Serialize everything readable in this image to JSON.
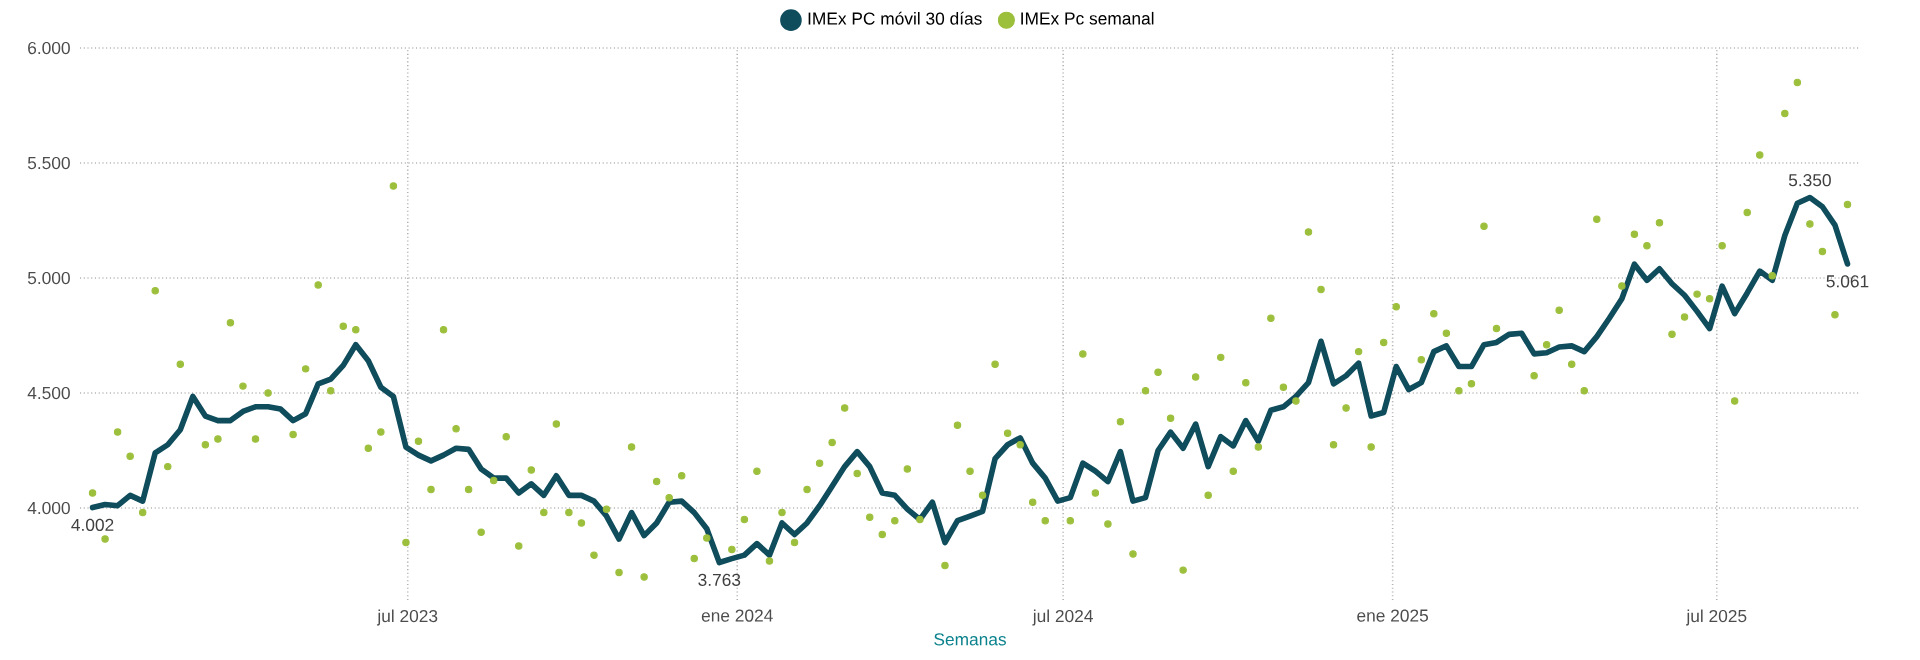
{
  "chart_data": {
    "type": "line",
    "xlabel": "Semanas",
    "legend": "top",
    "grid": true,
    "x": [
      "2023-01-06",
      "2023-01-13",
      "2023-01-20",
      "2023-01-27",
      "2023-02-03",
      "2023-02-10",
      "2023-02-17",
      "2023-02-24",
      "2023-03-03",
      "2023-03-10",
      "2023-03-17",
      "2023-03-24",
      "2023-03-31",
      "2023-04-07",
      "2023-04-14",
      "2023-04-21",
      "2023-04-28",
      "2023-05-05",
      "2023-05-12",
      "2023-05-19",
      "2023-05-26",
      "2023-06-02",
      "2023-06-09",
      "2023-06-16",
      "2023-06-23",
      "2023-06-30",
      "2023-07-07",
      "2023-07-14",
      "2023-07-21",
      "2023-07-28",
      "2023-08-04",
      "2023-08-11",
      "2023-08-18",
      "2023-08-25",
      "2023-09-01",
      "2023-09-08",
      "2023-09-15",
      "2023-09-22",
      "2023-09-29",
      "2023-10-06",
      "2023-10-13",
      "2023-10-20",
      "2023-10-27",
      "2023-11-03",
      "2023-11-10",
      "2023-11-17",
      "2023-11-24",
      "2023-12-01",
      "2023-12-08",
      "2023-12-15",
      "2023-12-22",
      "2023-12-29",
      "2024-01-05",
      "2024-01-12",
      "2024-01-19",
      "2024-01-26",
      "2024-02-02",
      "2024-02-09",
      "2024-02-16",
      "2024-02-23",
      "2024-03-01",
      "2024-03-08",
      "2024-03-15",
      "2024-03-22",
      "2024-03-29",
      "2024-04-05",
      "2024-04-12",
      "2024-04-19",
      "2024-04-26",
      "2024-05-03",
      "2024-05-10",
      "2024-05-17",
      "2024-05-24",
      "2024-05-31",
      "2024-06-07",
      "2024-06-14",
      "2024-06-21",
      "2024-06-28",
      "2024-07-05",
      "2024-07-12",
      "2024-07-19",
      "2024-07-26",
      "2024-08-02",
      "2024-08-09",
      "2024-08-16",
      "2024-08-23",
      "2024-08-30",
      "2024-09-06",
      "2024-09-13",
      "2024-09-20",
      "2024-09-27",
      "2024-10-04",
      "2024-10-11",
      "2024-10-18",
      "2024-10-25",
      "2024-11-01",
      "2024-11-08",
      "2024-11-15",
      "2024-11-22",
      "2024-11-29",
      "2024-12-06",
      "2024-12-13",
      "2024-12-20",
      "2024-12-27",
      "2025-01-03",
      "2025-01-10",
      "2025-01-17",
      "2025-01-24",
      "2025-01-31",
      "2025-02-07",
      "2025-02-14",
      "2025-02-21",
      "2025-02-28",
      "2025-03-07",
      "2025-03-14",
      "2025-03-21",
      "2025-03-28",
      "2025-04-04",
      "2025-04-11",
      "2025-04-18",
      "2025-04-25",
      "2025-05-02",
      "2025-05-09",
      "2025-05-16",
      "2025-05-23",
      "2025-05-30",
      "2025-06-06",
      "2025-06-13",
      "2025-06-20",
      "2025-06-27",
      "2025-07-04",
      "2025-07-11",
      "2025-07-18",
      "2025-07-25",
      "2025-08-01",
      "2025-08-08",
      "2025-08-15",
      "2025-08-22",
      "2025-08-29",
      "2025-09-05",
      "2025-09-12"
    ],
    "xlim": [
      "2022-12-30",
      "2025-09-19"
    ],
    "xticks": [
      {
        "value": "2023-07-01",
        "label": "jul 2023"
      },
      {
        "value": "2024-01-01",
        "label": "ene 2024"
      },
      {
        "value": "2024-07-01",
        "label": "jul 2024"
      },
      {
        "value": "2025-01-01",
        "label": "ene 2025"
      },
      {
        "value": "2025-07-01",
        "label": "jul 2025"
      }
    ],
    "ylim": [
      3600,
      6000
    ],
    "yticks": [
      {
        "value": 4000,
        "label": "4.000"
      },
      {
        "value": 4500,
        "label": "4.500"
      },
      {
        "value": 5000,
        "label": "5.000"
      },
      {
        "value": 5500,
        "label": "5.500"
      },
      {
        "value": 6000,
        "label": "6.000"
      }
    ],
    "series": [
      {
        "name": "IMEx PC móvil 30 días",
        "color": "#0f4c5c",
        "values": [
          4002,
          4015,
          4010,
          4055,
          4030,
          4240,
          4275,
          4340,
          4485,
          4400,
          4380,
          4380,
          4420,
          4440,
          4440,
          4430,
          4380,
          4410,
          4540,
          4560,
          4620,
          4710,
          4640,
          4525,
          4485,
          4265,
          4230,
          4205,
          4230,
          4260,
          4255,
          4170,
          4130,
          4130,
          4065,
          4105,
          4055,
          4140,
          4055,
          4055,
          4030,
          3965,
          3865,
          3980,
          3880,
          3935,
          4025,
          4030,
          3980,
          3910,
          3763,
          3780,
          3795,
          3845,
          3795,
          3935,
          3885,
          3935,
          4010,
          4095,
          4180,
          4245,
          4180,
          4065,
          4055,
          3995,
          3950,
          4025,
          3850,
          3945,
          3965,
          3985,
          4215,
          4275,
          4305,
          4195,
          4130,
          4030,
          4045,
          4195,
          4160,
          4115,
          4245,
          4030,
          4045,
          4250,
          4330,
          4260,
          4365,
          4180,
          4310,
          4270,
          4380,
          4290,
          4425,
          4440,
          4485,
          4545,
          4725,
          4540,
          4575,
          4630,
          4400,
          4415,
          4615,
          4515,
          4545,
          4680,
          4705,
          4615,
          4615,
          4710,
          4720,
          4755,
          4760,
          4670,
          4675,
          4700,
          4705,
          4680,
          4745,
          4825,
          4910,
          5060,
          4990,
          5040,
          4975,
          4925,
          4855,
          4780,
          4965,
          4845,
          4935,
          5030,
          4990,
          5185,
          5325,
          5350,
          5310,
          5230,
          5061
        ],
        "value_labels": [
          "4.002",
          null,
          null,
          null,
          null,
          null,
          null,
          null,
          null,
          null,
          null,
          null,
          null,
          null,
          null,
          null,
          null,
          null,
          null,
          null,
          null,
          null,
          null,
          null,
          null,
          null,
          null,
          null,
          null,
          null,
          null,
          null,
          null,
          null,
          null,
          null,
          null,
          null,
          null,
          null,
          null,
          null,
          null,
          null,
          null,
          null,
          null,
          null,
          null,
          null,
          "3.763",
          null,
          null,
          null,
          null,
          null,
          null,
          null,
          null,
          null,
          null,
          null,
          null,
          null,
          null,
          null,
          null,
          null,
          null,
          null,
          null,
          null,
          null,
          null,
          null,
          null,
          null,
          null,
          null,
          null,
          null,
          null,
          null,
          null,
          null,
          null,
          null,
          null,
          null,
          null,
          null,
          null,
          null,
          null,
          null,
          null,
          null,
          null,
          null,
          null,
          null,
          null,
          null,
          null,
          null,
          null,
          null,
          null,
          null,
          null,
          null,
          null,
          null,
          null,
          null,
          null,
          null,
          null,
          null,
          null,
          null,
          null,
          null,
          null,
          null,
          null,
          null,
          null,
          null,
          null,
          null,
          null,
          null,
          null,
          null,
          null,
          null,
          "5.350",
          null,
          null,
          "5.061"
        ]
      },
      {
        "name": "IMEx Pc semanal",
        "type": "scatter",
        "marker": "circle",
        "color": "#9cbf3c",
        "values": [
          4065,
          3865,
          4330,
          4225,
          3980,
          4945,
          4180,
          4625,
          null,
          4275,
          4300,
          4805,
          4530,
          4300,
          4500,
          null,
          4320,
          4605,
          4970,
          4510,
          4790,
          4775,
          4260,
          4330,
          5400,
          3850,
          4290,
          4080,
          4775,
          4345,
          4080,
          3895,
          4120,
          4310,
          3835,
          4165,
          3980,
          4365,
          3980,
          3935,
          3795,
          3995,
          3720,
          4265,
          3700,
          4115,
          4045,
          4140,
          3780,
          3870,
          null,
          3820,
          3950,
          4160,
          3770,
          3980,
          3850,
          4080,
          4195,
          4285,
          4435,
          4150,
          3960,
          3885,
          3945,
          4170,
          3950,
          null,
          3750,
          4360,
          4160,
          4055,
          4625,
          4325,
          4275,
          4025,
          3945,
          null,
          3945,
          4670,
          4065,
          3930,
          4375,
          3800,
          4510,
          4590,
          4390,
          3730,
          4570,
          4055,
          4655,
          4160,
          4545,
          4265,
          4825,
          4525,
          4465,
          5200,
          4950,
          4275,
          4435,
          4680,
          4265,
          4720,
          4875,
          null,
          4645,
          4845,
          4760,
          4510,
          4540,
          5225,
          4780,
          null,
          null,
          4575,
          4710,
          4860,
          4625,
          4510,
          5255,
          null,
          4965,
          5190,
          5140,
          5240,
          4755,
          4830,
          4930,
          4910,
          5140,
          4465,
          5285,
          5535,
          5010,
          5715,
          5850,
          5235,
          5115,
          4840,
          5320
        ]
      }
    ]
  }
}
